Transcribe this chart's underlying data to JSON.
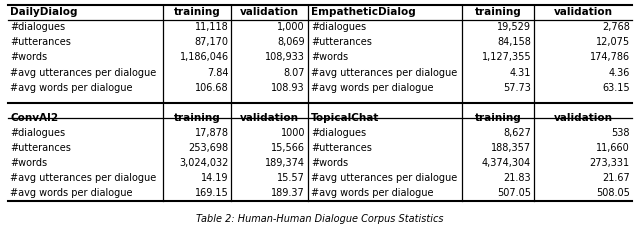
{
  "caption": "Table 2: Human-Human Dialogue Corpus Statistics",
  "top_left_header": "DailyDialog",
  "top_right_header": "EmpatheticDialog",
  "bottom_left_header": "ConvAI2",
  "bottom_right_header": "TopicalChat",
  "row_labels": [
    "#dialogues",
    "#utterances",
    "#words",
    "#avg utterances per dialogue",
    "#avg words per dialogue"
  ],
  "daily_dialog": {
    "training": [
      "11,118",
      "87,170",
      "1,186,046",
      "7.84",
      "106.68"
    ],
    "validation": [
      "1,000",
      "8,069",
      "108,933",
      "8.07",
      "108.93"
    ]
  },
  "empathetic_dialog": {
    "training": [
      "19,529",
      "84,158",
      "1,127,355",
      "4.31",
      "57.73"
    ],
    "validation": [
      "2,768",
      "12,075",
      "174,786",
      "4.36",
      "63.15"
    ]
  },
  "conv_ai2": {
    "training": [
      "17,878",
      "253,698",
      "3,024,032",
      "14.19",
      "169.15"
    ],
    "validation": [
      "1000",
      "15,566",
      "189,374",
      "15.57",
      "189.37"
    ]
  },
  "topical_chat": {
    "training": [
      "8,627",
      "188,357",
      "4,374,304",
      "21.83",
      "507.05"
    ],
    "validation": [
      "538",
      "11,660",
      "273,331",
      "21.67",
      "508.05"
    ]
  }
}
